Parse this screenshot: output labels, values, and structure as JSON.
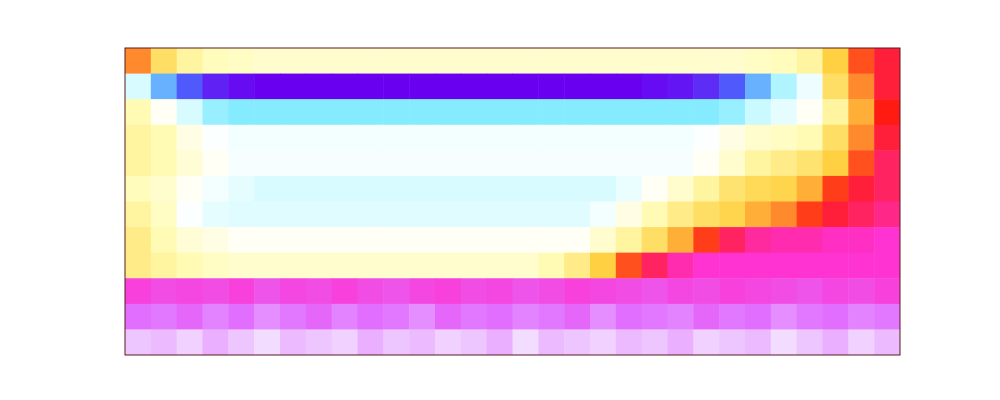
{
  "chart_data": {
    "type": "heatmap",
    "tick_labels": false,
    "cells": [
      [
        0.62,
        0.55,
        0.5,
        0.47,
        0.46,
        0.45,
        0.45,
        0.45,
        0.45,
        0.45,
        0.45,
        0.45,
        0.45,
        0.45,
        0.45,
        0.45,
        0.45,
        0.45,
        0.45,
        0.45,
        0.45,
        0.45,
        0.45,
        0.45,
        0.46,
        0.47,
        0.5,
        0.58,
        0.65,
        0.7
      ],
      [
        0.3,
        0.15,
        0.08,
        0.03,
        0.01,
        0.0,
        0.0,
        0.0,
        0.0,
        0.0,
        0.0,
        0.0,
        0.0,
        0.0,
        0.0,
        0.0,
        0.0,
        0.0,
        0.0,
        0.0,
        0.01,
        0.02,
        0.04,
        0.08,
        0.15,
        0.25,
        0.35,
        0.55,
        0.62,
        0.7
      ],
      [
        0.48,
        0.4,
        0.3,
        0.22,
        0.2,
        0.2,
        0.2,
        0.2,
        0.2,
        0.2,
        0.2,
        0.2,
        0.2,
        0.2,
        0.2,
        0.2,
        0.2,
        0.2,
        0.2,
        0.2,
        0.2,
        0.2,
        0.2,
        0.22,
        0.28,
        0.33,
        0.4,
        0.5,
        0.6,
        0.68
      ],
      [
        0.5,
        0.48,
        0.42,
        0.38,
        0.36,
        0.36,
        0.36,
        0.36,
        0.36,
        0.36,
        0.36,
        0.36,
        0.36,
        0.36,
        0.36,
        0.36,
        0.36,
        0.36,
        0.36,
        0.36,
        0.36,
        0.36,
        0.38,
        0.42,
        0.45,
        0.46,
        0.48,
        0.55,
        0.62,
        0.7
      ],
      [
        0.5,
        0.48,
        0.44,
        0.4,
        0.37,
        0.37,
        0.37,
        0.37,
        0.37,
        0.37,
        0.37,
        0.37,
        0.37,
        0.37,
        0.37,
        0.37,
        0.37,
        0.37,
        0.37,
        0.37,
        0.37,
        0.37,
        0.4,
        0.45,
        0.5,
        0.52,
        0.54,
        0.58,
        0.65,
        0.72
      ],
      [
        0.47,
        0.45,
        0.4,
        0.36,
        0.33,
        0.3,
        0.3,
        0.3,
        0.3,
        0.3,
        0.3,
        0.3,
        0.3,
        0.3,
        0.3,
        0.3,
        0.3,
        0.3,
        0.3,
        0.34,
        0.4,
        0.45,
        0.5,
        0.54,
        0.56,
        0.57,
        0.6,
        0.66,
        0.7,
        0.72
      ],
      [
        0.5,
        0.46,
        0.38,
        0.33,
        0.32,
        0.32,
        0.32,
        0.32,
        0.32,
        0.32,
        0.32,
        0.32,
        0.32,
        0.32,
        0.32,
        0.32,
        0.32,
        0.32,
        0.36,
        0.42,
        0.48,
        0.52,
        0.55,
        0.57,
        0.6,
        0.62,
        0.66,
        0.7,
        0.72,
        0.74
      ],
      [
        0.52,
        0.48,
        0.44,
        0.42,
        0.4,
        0.4,
        0.4,
        0.4,
        0.4,
        0.4,
        0.4,
        0.4,
        0.4,
        0.4,
        0.4,
        0.4,
        0.4,
        0.4,
        0.45,
        0.5,
        0.55,
        0.6,
        0.66,
        0.72,
        0.75,
        0.76,
        0.76,
        0.77,
        0.77,
        0.78
      ],
      [
        0.52,
        0.5,
        0.48,
        0.46,
        0.45,
        0.45,
        0.45,
        0.45,
        0.45,
        0.45,
        0.45,
        0.45,
        0.45,
        0.45,
        0.45,
        0.45,
        0.48,
        0.52,
        0.58,
        0.65,
        0.72,
        0.76,
        0.78,
        0.78,
        0.78,
        0.78,
        0.78,
        0.78,
        0.78,
        0.78
      ],
      [
        0.8,
        0.82,
        0.81,
        0.82,
        0.8,
        0.83,
        0.81,
        0.82,
        0.8,
        0.82,
        0.83,
        0.81,
        0.8,
        0.82,
        0.81,
        0.83,
        0.82,
        0.8,
        0.81,
        0.82,
        0.83,
        0.81,
        0.82,
        0.8,
        0.81,
        0.82,
        0.83,
        0.81,
        0.82,
        0.8
      ],
      [
        0.87,
        0.88,
        0.86,
        0.89,
        0.87,
        0.9,
        0.88,
        0.86,
        0.89,
        0.87,
        0.88,
        0.9,
        0.86,
        0.88,
        0.87,
        0.89,
        0.88,
        0.86,
        0.9,
        0.87,
        0.88,
        0.89,
        0.86,
        0.88,
        0.87,
        0.9,
        0.88,
        0.87,
        0.89,
        0.88
      ],
      [
        0.95,
        0.94,
        0.96,
        0.93,
        0.95,
        0.97,
        0.94,
        0.95,
        0.96,
        0.93,
        0.95,
        0.94,
        0.96,
        0.95,
        0.93,
        0.97,
        0.94,
        0.95,
        0.96,
        0.94,
        0.95,
        0.93,
        0.96,
        0.95,
        0.94,
        0.97,
        0.95,
        0.93,
        0.96,
        0.94
      ]
    ]
  }
}
